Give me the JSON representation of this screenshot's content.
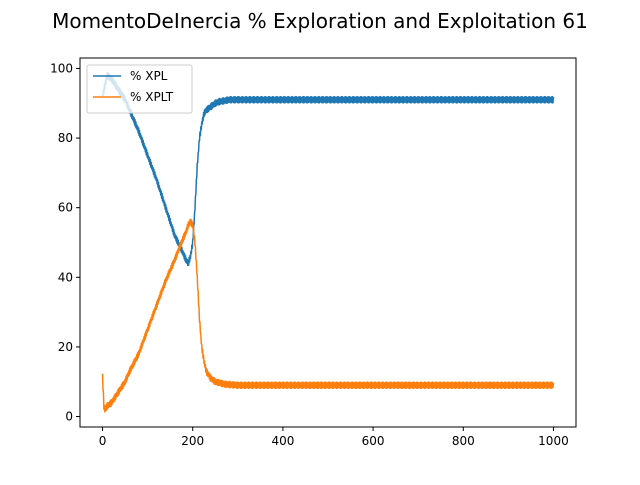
{
  "chart_data": {
    "type": "line",
    "title": "MomentoDeInercia % Exploration and Exploitation 61",
    "xlabel": "",
    "ylabel": "",
    "xlim": [
      -50,
      1050
    ],
    "ylim": [
      -3,
      103
    ],
    "xticks": [
      0,
      200,
      400,
      600,
      800,
      1000
    ],
    "yticks": [
      0,
      20,
      40,
      60,
      80,
      100
    ],
    "grid": false,
    "legend": {
      "placement": "upper-left"
    },
    "series": [
      {
        "name": "% XPL",
        "color": "#1f77b4",
        "x": [
          0,
          5,
          10,
          20,
          30,
          40,
          50,
          60,
          80,
          100,
          120,
          140,
          160,
          175,
          185,
          190,
          195,
          200,
          205,
          210,
          215,
          220,
          225,
          230,
          240,
          250,
          260,
          270,
          280,
          290,
          300,
          350,
          400,
          500,
          600,
          700,
          800,
          900,
          1000
        ],
        "y": [
          92,
          95,
          98,
          97,
          95,
          93,
          91,
          88,
          82,
          75,
          68,
          60,
          52,
          48,
          45,
          44,
          46,
          50,
          60,
          72,
          80,
          84,
          87,
          88,
          89,
          90,
          90.5,
          90.7,
          91,
          91,
          91,
          91,
          91,
          91,
          91,
          91,
          91,
          91,
          91
        ],
        "noise": 0.9
      },
      {
        "name": "% XPLT",
        "color": "#ff7f0e",
        "x": [
          0,
          3,
          5,
          8,
          10,
          20,
          30,
          40,
          50,
          60,
          80,
          100,
          120,
          140,
          160,
          175,
          185,
          190,
          195,
          200,
          205,
          210,
          215,
          220,
          225,
          230,
          240,
          250,
          260,
          270,
          280,
          290,
          300,
          350,
          400,
          500,
          600,
          700,
          800,
          900,
          1000
        ],
        "y": [
          11.5,
          3,
          2,
          2.5,
          3,
          4,
          6,
          8,
          10,
          13,
          18,
          25,
          32,
          39,
          45,
          50,
          53,
          55,
          56,
          55,
          50,
          40,
          28,
          20,
          16,
          13,
          11,
          10,
          9.7,
          9.3,
          9.2,
          9.1,
          9,
          9,
          9,
          9,
          9,
          9,
          9,
          9,
          9
        ],
        "noise": 0.9
      }
    ]
  }
}
